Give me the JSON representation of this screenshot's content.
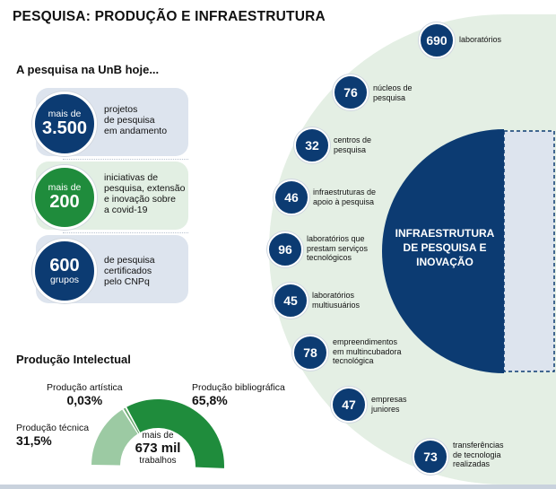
{
  "header": {
    "title": "PESQUISA: PRODUÇÃO E INFRAESTRUTURA"
  },
  "research": {
    "subtitle": "A pesquisa na UnB hoje...",
    "items": [
      {
        "prefix": "mais de",
        "value": "3.500",
        "suffix": "",
        "desc": [
          "projetos",
          "de pesquisa",
          "em andamento"
        ],
        "color": "#0c3b72"
      },
      {
        "prefix": "mais de",
        "value": "200",
        "suffix": "",
        "desc": [
          "iniciativas de",
          "pesquisa, extensão",
          "e inovação sobre",
          "a covid-19"
        ],
        "color": "#1f8c3c"
      },
      {
        "prefix": "",
        "value": "600",
        "suffix": "grupos",
        "desc": [
          "de pesquisa",
          "certificados",
          "pelo CNPq"
        ],
        "color": "#0c3b72"
      }
    ]
  },
  "production": {
    "title": "Produção Intelectual",
    "center_prefix": "mais de",
    "center_value": "673 mil",
    "center_suffix": "trabalhos",
    "segments": [
      {
        "name": "Produção bibliográfica",
        "value": "65,8%",
        "share": 65.8,
        "color": "#1f8c3c"
      },
      {
        "name": "Produção artística",
        "value": "0,03%",
        "share": 0.03,
        "color": "#6aa96f"
      },
      {
        "name": "Produção técnica",
        "value": "31,5%",
        "share": 31.5,
        "color": "#9ccaa3"
      }
    ]
  },
  "infrastructure": {
    "label_lines": [
      "INFRAESTRUTURA",
      "DE PESQUISA E",
      "INOVAÇÃO"
    ],
    "nodes": [
      {
        "value": "690",
        "label": [
          "laboratórios"
        ]
      },
      {
        "value": "76",
        "label": [
          "núcleos de",
          "pesquisa"
        ]
      },
      {
        "value": "32",
        "label": [
          "centros de",
          "pesquisa"
        ]
      },
      {
        "value": "46",
        "label": [
          "infraestruturas de",
          "apoio à pesquisa"
        ]
      },
      {
        "value": "96",
        "label": [
          "laboratórios que",
          "prestam serviços",
          "tecnológicos"
        ]
      },
      {
        "value": "45",
        "label": [
          "laboratórios",
          "multiusuários"
        ]
      },
      {
        "value": "78",
        "label": [
          "empreendimentos",
          "em multincubadora",
          "tecnológica"
        ]
      },
      {
        "value": "47",
        "label": [
          "empresas",
          "juniores"
        ]
      },
      {
        "value": "73",
        "label": [
          "transferências",
          "de tecnologia",
          "realizadas"
        ]
      }
    ]
  },
  "colors": {
    "navy": "#0c3b72",
    "green": "#1f8c3c",
    "pale_green": "#e4efe4",
    "pale_blue": "#dde4ee"
  }
}
